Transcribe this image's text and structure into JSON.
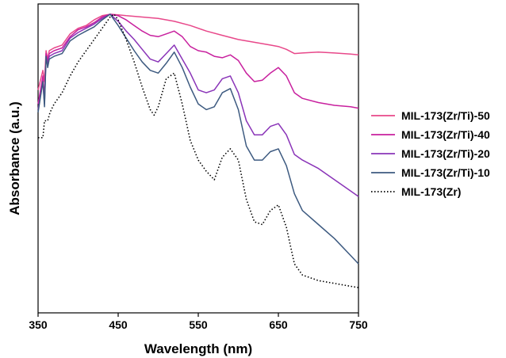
{
  "chart_data": {
    "type": "line",
    "xlabel": "Wavelength (nm)",
    "ylabel": "Absorbance (a.u.)",
    "xlim": [
      350,
      750
    ],
    "ylim": [
      0,
      1
    ],
    "x_ticks": [
      "350",
      "450",
      "550",
      "650",
      "750"
    ],
    "y_ticks_shown": false,
    "grid": false,
    "legend_position": "right",
    "series": [
      {
        "name": "MIL-173(Zr/Ti)-50",
        "color": "#e8488a",
        "dash": "solid",
        "x": [
          350,
          356,
          358,
          360,
          362,
          364,
          370,
          380,
          390,
          400,
          410,
          420,
          430,
          440,
          450,
          460,
          480,
          500,
          520,
          540,
          560,
          580,
          600,
          620,
          640,
          650,
          660,
          670,
          680,
          700,
          720,
          740,
          750
        ],
        "y": [
          0.73,
          0.8,
          0.76,
          0.87,
          0.84,
          0.87,
          0.88,
          0.89,
          0.93,
          0.95,
          0.96,
          0.98,
          0.995,
          1.0,
          0.998,
          0.995,
          0.99,
          0.985,
          0.975,
          0.96,
          0.94,
          0.925,
          0.91,
          0.9,
          0.89,
          0.885,
          0.875,
          0.86,
          0.862,
          0.865,
          0.862,
          0.858,
          0.855
        ]
      },
      {
        "name": "MIL-173(Zr/Ti)-40",
        "color": "#c8209e",
        "dash": "solid",
        "x": [
          350,
          356,
          358,
          360,
          362,
          364,
          370,
          380,
          390,
          400,
          410,
          420,
          430,
          440,
          450,
          460,
          470,
          480,
          490,
          500,
          510,
          520,
          530,
          540,
          550,
          560,
          570,
          580,
          590,
          600,
          610,
          620,
          630,
          640,
          650,
          660,
          670,
          680,
          700,
          720,
          740,
          750
        ],
        "y": [
          0.68,
          0.78,
          0.7,
          0.86,
          0.83,
          0.86,
          0.87,
          0.88,
          0.92,
          0.945,
          0.955,
          0.97,
          0.99,
          1.0,
          0.995,
          0.98,
          0.96,
          0.94,
          0.925,
          0.92,
          0.93,
          0.94,
          0.92,
          0.885,
          0.87,
          0.865,
          0.85,
          0.845,
          0.855,
          0.835,
          0.79,
          0.76,
          0.765,
          0.79,
          0.81,
          0.78,
          0.72,
          0.7,
          0.685,
          0.675,
          0.67,
          0.665
        ]
      },
      {
        "name": "MIL-173(Zr/Ti)-20",
        "color": "#8a34b8",
        "dash": "solid",
        "x": [
          350,
          356,
          358,
          360,
          362,
          364,
          370,
          380,
          390,
          400,
          410,
          420,
          430,
          440,
          450,
          460,
          470,
          480,
          490,
          500,
          510,
          520,
          530,
          540,
          550,
          560,
          570,
          580,
          590,
          600,
          610,
          620,
          630,
          640,
          650,
          660,
          670,
          680,
          700,
          720,
          740,
          750
        ],
        "y": [
          0.66,
          0.76,
          0.68,
          0.85,
          0.82,
          0.85,
          0.86,
          0.87,
          0.915,
          0.935,
          0.95,
          0.965,
          0.985,
          1.0,
          0.975,
          0.94,
          0.91,
          0.875,
          0.84,
          0.83,
          0.86,
          0.89,
          0.84,
          0.79,
          0.73,
          0.72,
          0.73,
          0.77,
          0.78,
          0.72,
          0.62,
          0.57,
          0.57,
          0.6,
          0.61,
          0.57,
          0.5,
          0.48,
          0.45,
          0.41,
          0.37,
          0.35
        ]
      },
      {
        "name": "MIL-173(Zr/Ti)-10",
        "color": "#3d5a80",
        "dash": "solid",
        "x": [
          350,
          356,
          358,
          360,
          362,
          364,
          370,
          380,
          390,
          400,
          410,
          420,
          430,
          440,
          450,
          460,
          470,
          480,
          490,
          500,
          510,
          520,
          530,
          540,
          550,
          560,
          570,
          580,
          590,
          600,
          610,
          620,
          630,
          640,
          650,
          660,
          670,
          680,
          700,
          720,
          740,
          750
        ],
        "y": [
          0.65,
          0.76,
          0.67,
          0.85,
          0.81,
          0.84,
          0.85,
          0.86,
          0.905,
          0.925,
          0.94,
          0.955,
          0.98,
          1.0,
          0.96,
          0.915,
          0.87,
          0.83,
          0.8,
          0.79,
          0.825,
          0.865,
          0.81,
          0.74,
          0.68,
          0.66,
          0.67,
          0.72,
          0.735,
          0.66,
          0.53,
          0.48,
          0.48,
          0.51,
          0.52,
          0.46,
          0.36,
          0.3,
          0.25,
          0.2,
          0.14,
          0.11
        ]
      },
      {
        "name": "MIL-173(Zr)",
        "color": "#000000",
        "dash": "dotted",
        "x": [
          350,
          356,
          358,
          362,
          365,
          370,
          380,
          390,
          400,
          410,
          420,
          430,
          440,
          445,
          450,
          460,
          470,
          480,
          490,
          495,
          500,
          510,
          520,
          530,
          540,
          550,
          560,
          570,
          580,
          590,
          600,
          610,
          620,
          630,
          640,
          650,
          660,
          670,
          680,
          700,
          720,
          740,
          750
        ],
        "y": [
          0.56,
          0.56,
          0.62,
          0.62,
          0.65,
          0.68,
          0.72,
          0.78,
          0.83,
          0.87,
          0.91,
          0.95,
          0.99,
          1.0,
          0.98,
          0.91,
          0.83,
          0.74,
          0.66,
          0.64,
          0.67,
          0.77,
          0.79,
          0.68,
          0.55,
          0.48,
          0.44,
          0.41,
          0.49,
          0.52,
          0.48,
          0.34,
          0.26,
          0.25,
          0.3,
          0.32,
          0.24,
          0.11,
          0.07,
          0.05,
          0.04,
          0.03,
          0.025
        ]
      }
    ]
  }
}
